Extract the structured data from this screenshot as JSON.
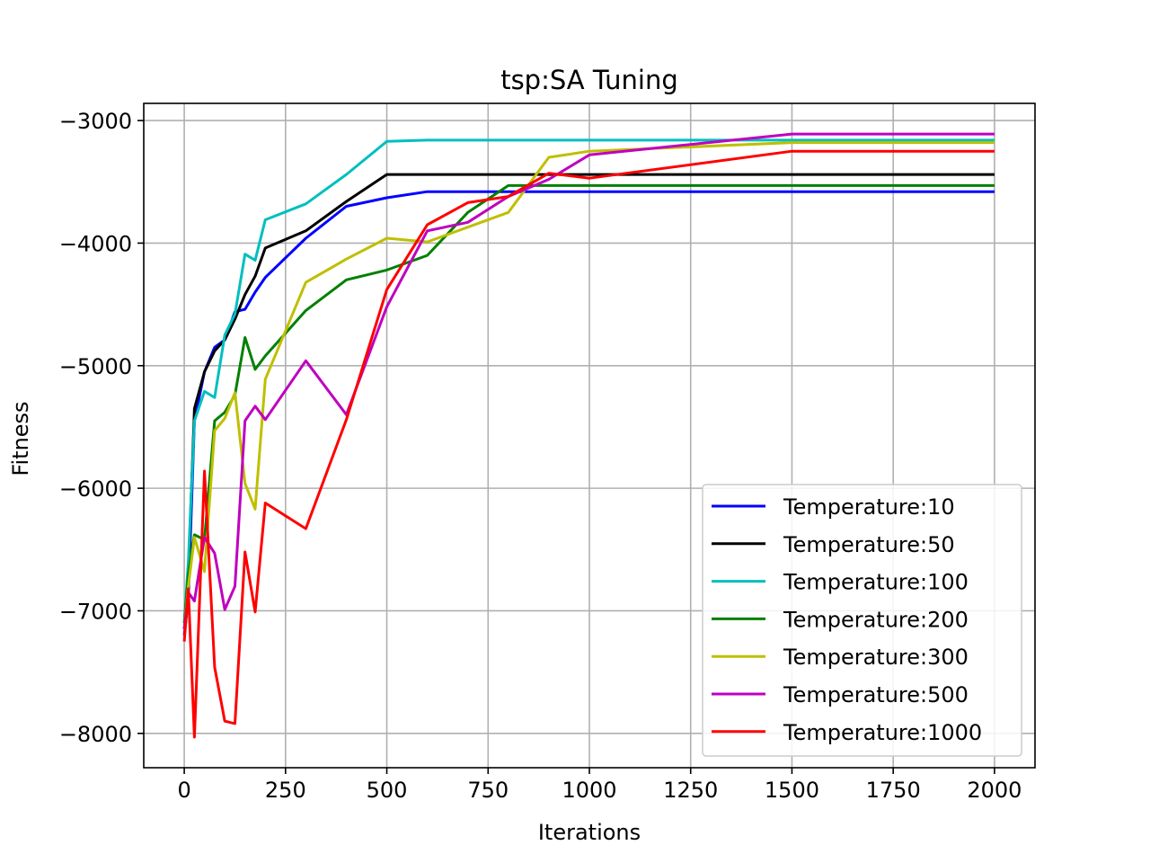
{
  "chart_data": {
    "type": "line",
    "title": "tsp:SA Tuning",
    "xlabel": "Iterations",
    "ylabel": "Fitness",
    "xlim": [
      -100,
      2100
    ],
    "ylim": [
      -8280,
      -2860
    ],
    "x_ticks": [
      0,
      250,
      500,
      750,
      1000,
      1250,
      1500,
      1750,
      2000
    ],
    "y_ticks": [
      -8000,
      -7000,
      -6000,
      -5000,
      -4000,
      -3000
    ],
    "x_tick_labels": [
      "0",
      "250",
      "500",
      "750",
      "1000",
      "1250",
      "1500",
      "1750",
      "2000"
    ],
    "y_tick_labels": [
      "−8000",
      "−7000",
      "−6000",
      "−5000",
      "−4000",
      "−3000"
    ],
    "grid": true,
    "legend_position": "lower right",
    "series": [
      {
        "name": "Temperature:10",
        "color": "#0000ff",
        "x": [
          0,
          10,
          25,
          50,
          75,
          100,
          125,
          150,
          175,
          200,
          300,
          400,
          500,
          600,
          700,
          800,
          900,
          1000,
          1500,
          2000
        ],
        "y": [
          -7200,
          -6900,
          -5450,
          -5050,
          -4850,
          -4790,
          -4560,
          -4540,
          -4400,
          -4280,
          -3960,
          -3700,
          -3630,
          -3580,
          -3580,
          -3580,
          -3580,
          -3580,
          -3580,
          -3580
        ]
      },
      {
        "name": "Temperature:50",
        "color": "#000000",
        "x": [
          0,
          10,
          25,
          50,
          75,
          100,
          125,
          150,
          175,
          200,
          300,
          400,
          500,
          600,
          700,
          800,
          900,
          1000,
          1500,
          2000
        ],
        "y": [
          -7150,
          -6700,
          -5350,
          -5050,
          -4880,
          -4790,
          -4620,
          -4420,
          -4270,
          -4040,
          -3900,
          -3660,
          -3440,
          -3440,
          -3440,
          -3440,
          -3440,
          -3440,
          -3440,
          -3440
        ]
      },
      {
        "name": "Temperature:100",
        "color": "#00bfbf",
        "x": [
          0,
          10,
          25,
          50,
          75,
          100,
          125,
          150,
          175,
          200,
          300,
          400,
          500,
          600,
          700,
          800,
          900,
          1000,
          1500,
          2000
        ],
        "y": [
          -7100,
          -6600,
          -5450,
          -5210,
          -5260,
          -4750,
          -4580,
          -4090,
          -4140,
          -3810,
          -3680,
          -3440,
          -3170,
          -3160,
          -3160,
          -3160,
          -3160,
          -3160,
          -3160,
          -3160
        ]
      },
      {
        "name": "Temperature:200",
        "color": "#008000",
        "x": [
          0,
          10,
          25,
          50,
          75,
          100,
          125,
          150,
          175,
          200,
          300,
          400,
          500,
          600,
          700,
          800,
          900,
          1000,
          1500,
          2000
        ],
        "y": [
          -7100,
          -6700,
          -6380,
          -6420,
          -5450,
          -5380,
          -5240,
          -4770,
          -5030,
          -4920,
          -4550,
          -4300,
          -4220,
          -4100,
          -3750,
          -3530,
          -3530,
          -3530,
          -3530,
          -3530
        ]
      },
      {
        "name": "Temperature:300",
        "color": "#bfbf00",
        "x": [
          0,
          10,
          25,
          50,
          75,
          100,
          125,
          150,
          175,
          200,
          300,
          400,
          500,
          600,
          700,
          800,
          900,
          1000,
          1500,
          2000
        ],
        "y": [
          -7150,
          -6800,
          -6400,
          -6680,
          -5530,
          -5430,
          -5220,
          -5960,
          -6170,
          -5110,
          -4320,
          -4130,
          -3960,
          -3990,
          -3870,
          -3750,
          -3300,
          -3250,
          -3180,
          -3180
        ]
      },
      {
        "name": "Temperature:500",
        "color": "#bf00bf",
        "x": [
          0,
          10,
          25,
          50,
          75,
          100,
          125,
          150,
          175,
          200,
          300,
          400,
          500,
          600,
          700,
          800,
          900,
          1000,
          1500,
          2000
        ],
        "y": [
          -7150,
          -6850,
          -6920,
          -6400,
          -6530,
          -6990,
          -6800,
          -5450,
          -5330,
          -5440,
          -4960,
          -5400,
          -4520,
          -3900,
          -3830,
          -3620,
          -3480,
          -3280,
          -3110,
          -3110
        ]
      },
      {
        "name": "Temperature:1000",
        "color": "#ff0000",
        "x": [
          0,
          10,
          25,
          50,
          75,
          100,
          125,
          150,
          175,
          200,
          300,
          400,
          500,
          600,
          700,
          800,
          900,
          1000,
          1500,
          2000
        ],
        "y": [
          -7250,
          -6820,
          -8030,
          -5860,
          -7460,
          -7900,
          -7920,
          -6520,
          -7010,
          -6120,
          -6330,
          -5440,
          -4380,
          -3850,
          -3670,
          -3620,
          -3430,
          -3470,
          -3250,
          -3250
        ]
      }
    ]
  }
}
